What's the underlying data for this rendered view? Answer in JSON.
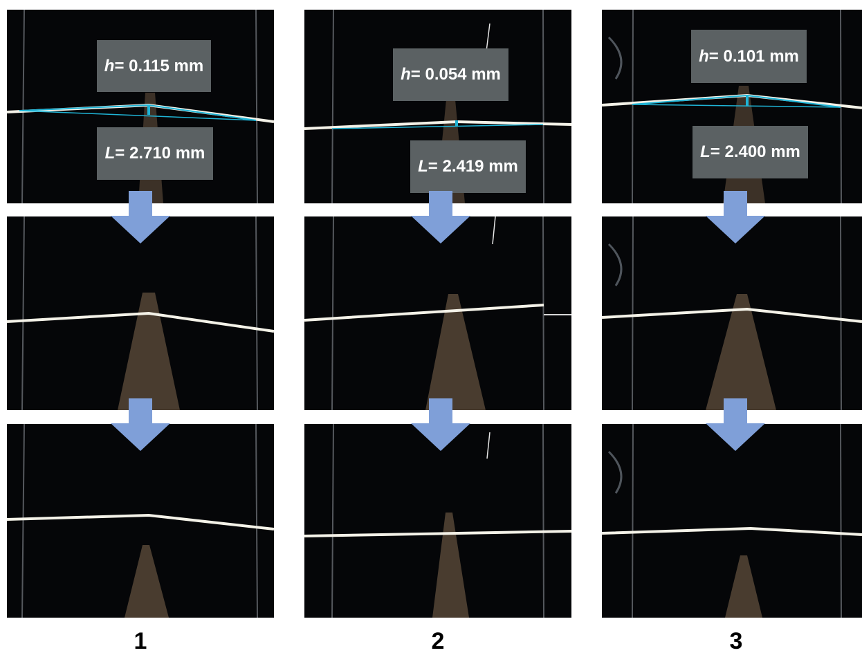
{
  "columns": [
    {
      "label": "1",
      "h": {
        "var": "h",
        "text": " = 0.115 mm"
      },
      "L": {
        "var": "L",
        "text": " = 2.710 mm"
      }
    },
    {
      "label": "2",
      "h": {
        "var": "h",
        "text": " = 0.054 mm"
      },
      "L": {
        "var": "L",
        "text": " = 2.419 mm"
      }
    },
    {
      "label": "3",
      "h": {
        "var": "h",
        "text": " = 0.101 mm"
      },
      "L": {
        "var": "L",
        "text": " = 2.400 mm"
      }
    }
  ],
  "colors": {
    "background": "#050608",
    "label_box": "#5b6163",
    "measure_line": "#1fb4d6",
    "arrow": "#7f9fd8"
  }
}
